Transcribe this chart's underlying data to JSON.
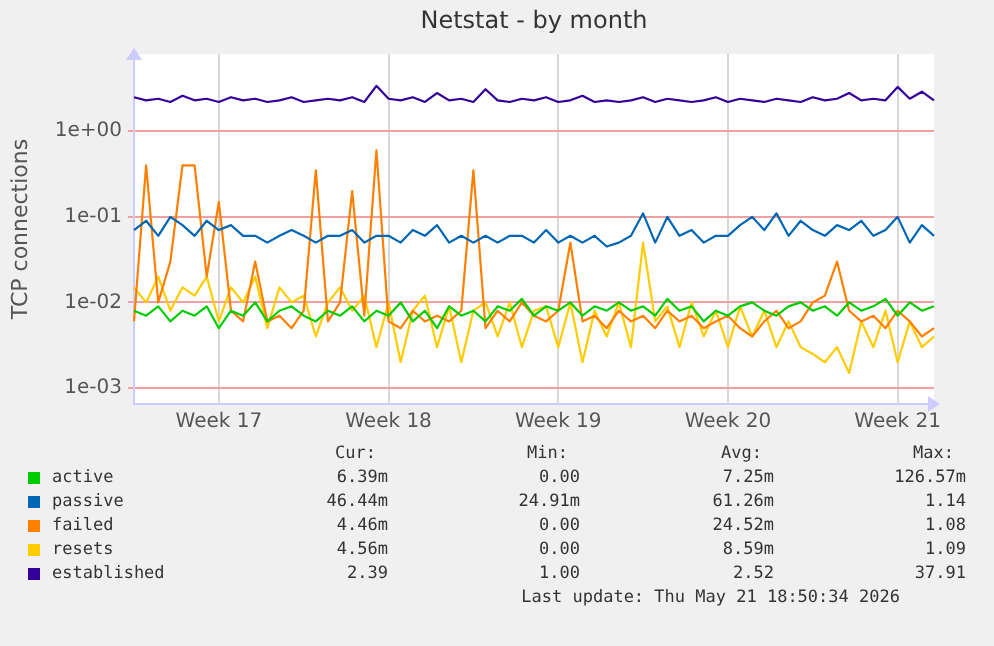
{
  "chart_data": {
    "type": "line",
    "title": "Netstat - by month",
    "ylabel": "TCP connections",
    "log": "y",
    "grid": true,
    "legend": "bottom",
    "marker": "none",
    "line_style": "solid",
    "categories": [
      null,
      null,
      null,
      null,
      null,
      null,
      null,
      "Week 17",
      null,
      null,
      null,
      null,
      null,
      null,
      null,
      null,
      null,
      null,
      null,
      null,
      null,
      "Week 18",
      null,
      null,
      null,
      null,
      null,
      null,
      null,
      null,
      null,
      null,
      null,
      null,
      null,
      "Week 19",
      null,
      null,
      null,
      null,
      null,
      null,
      null,
      null,
      null,
      null,
      null,
      null,
      null,
      "Week 20",
      null,
      null,
      null,
      null,
      null,
      null,
      null,
      null,
      null,
      null,
      null,
      null,
      null,
      "Week 21",
      null,
      null,
      null
    ],
    "ylim": [
      0.00065,
      8
    ],
    "yticks": [
      {
        "value": 0.001,
        "label": "1e-03"
      },
      {
        "value": 0.01,
        "label": "1e-02"
      },
      {
        "value": 0.1,
        "label": "1e-01"
      },
      {
        "value": 1,
        "label": "1e+00"
      }
    ],
    "series": [
      {
        "name": "active",
        "color": "#00cc00",
        "values": [
          0.008,
          0.007,
          0.009,
          0.006,
          0.008,
          0.007,
          0.009,
          0.005,
          0.008,
          0.007,
          0.01,
          0.006,
          0.008,
          0.009,
          0.007,
          0.006,
          0.008,
          0.007,
          0.009,
          0.006,
          0.008,
          0.007,
          0.01,
          0.006,
          0.008,
          0.005,
          0.009,
          0.007,
          0.008,
          0.006,
          0.009,
          0.008,
          0.011,
          0.007,
          0.009,
          0.008,
          0.01,
          0.007,
          0.009,
          0.008,
          0.01,
          0.008,
          0.009,
          0.007,
          0.011,
          0.008,
          0.009,
          0.006,
          0.008,
          0.007,
          0.009,
          0.01,
          0.008,
          0.007,
          0.009,
          0.01,
          0.008,
          0.009,
          0.007,
          0.01,
          0.008,
          0.009,
          0.011,
          0.007,
          0.01,
          0.008,
          0.009
        ]
      },
      {
        "name": "passive",
        "color": "#0066b3",
        "values": [
          0.07,
          0.09,
          0.06,
          0.1,
          0.08,
          0.06,
          0.09,
          0.07,
          0.08,
          0.06,
          0.06,
          0.05,
          0.06,
          0.07,
          0.06,
          0.05,
          0.06,
          0.06,
          0.07,
          0.05,
          0.06,
          0.06,
          0.05,
          0.07,
          0.06,
          0.08,
          0.05,
          0.06,
          0.05,
          0.06,
          0.05,
          0.06,
          0.06,
          0.05,
          0.07,
          0.05,
          0.06,
          0.05,
          0.06,
          0.045,
          0.05,
          0.06,
          0.11,
          0.05,
          0.1,
          0.06,
          0.07,
          0.05,
          0.06,
          0.06,
          0.08,
          0.1,
          0.07,
          0.11,
          0.06,
          0.09,
          0.07,
          0.06,
          0.08,
          0.07,
          0.09,
          0.06,
          0.07,
          0.1,
          0.05,
          0.08,
          0.06
        ]
      },
      {
        "name": "failed",
        "color": "#ff8000",
        "values": [
          0.006,
          0.4,
          0.01,
          0.03,
          0.4,
          0.4,
          0.02,
          0.15,
          0.008,
          0.006,
          0.03,
          0.006,
          0.007,
          0.005,
          0.008,
          0.35,
          0.006,
          0.01,
          0.2,
          0.007,
          0.6,
          0.006,
          0.005,
          0.008,
          0.006,
          0.007,
          0.006,
          0.008,
          0.35,
          0.005,
          0.008,
          0.006,
          0.01,
          0.007,
          0.006,
          0.008,
          0.05,
          0.006,
          0.007,
          0.005,
          0.008,
          0.006,
          0.007,
          0.005,
          0.008,
          0.006,
          0.007,
          0.005,
          0.006,
          0.007,
          0.005,
          0.004,
          0.006,
          0.008,
          0.005,
          0.006,
          0.01,
          0.012,
          0.03,
          0.008,
          0.006,
          0.007,
          0.005,
          0.008,
          0.006,
          0.004,
          0.005
        ]
      },
      {
        "name": "resets",
        "color": "#ffcc00",
        "values": [
          0.015,
          0.01,
          0.02,
          0.008,
          0.015,
          0.012,
          0.02,
          0.006,
          0.015,
          0.01,
          0.02,
          0.005,
          0.015,
          0.01,
          0.012,
          0.004,
          0.01,
          0.015,
          0.008,
          0.012,
          0.003,
          0.01,
          0.002,
          0.008,
          0.012,
          0.003,
          0.009,
          0.002,
          0.008,
          0.01,
          0.004,
          0.01,
          0.003,
          0.008,
          0.009,
          0.003,
          0.01,
          0.002,
          0.008,
          0.004,
          0.01,
          0.003,
          0.05,
          0.006,
          0.009,
          0.003,
          0.01,
          0.004,
          0.008,
          0.003,
          0.009,
          0.004,
          0.008,
          0.003,
          0.006,
          0.003,
          0.0025,
          0.002,
          0.003,
          0.0015,
          0.006,
          0.003,
          0.008,
          0.002,
          0.006,
          0.003,
          0.004
        ]
      },
      {
        "name": "established",
        "color": "#330099",
        "values": [
          2.5,
          2.3,
          2.4,
          2.2,
          2.6,
          2.3,
          2.4,
          2.2,
          2.5,
          2.3,
          2.4,
          2.2,
          2.3,
          2.5,
          2.2,
          2.3,
          2.4,
          2.3,
          2.5,
          2.2,
          3.4,
          2.4,
          2.3,
          2.5,
          2.2,
          2.8,
          2.3,
          2.4,
          2.2,
          3.1,
          2.3,
          2.2,
          2.4,
          2.3,
          2.5,
          2.2,
          2.3,
          2.6,
          2.2,
          2.3,
          2.2,
          2.3,
          2.5,
          2.2,
          2.4,
          2.3,
          2.2,
          2.3,
          2.5,
          2.2,
          2.4,
          2.3,
          2.2,
          2.4,
          2.3,
          2.2,
          2.5,
          2.3,
          2.4,
          2.8,
          2.3,
          2.4,
          2.3,
          3.3,
          2.4,
          2.9,
          2.3
        ]
      }
    ],
    "annotations": [
      "Cur:",
      "Min:",
      "Avg:",
      "Max:",
      "6.39m",
      "0.00",
      "7.25m",
      "126.57m",
      "46.44m",
      "24.91m",
      "61.26m",
      "1.14",
      "4.46m",
      "0.00",
      "24.52m",
      "1.08",
      "4.56m",
      "0.00",
      "8.59m",
      "1.09",
      "2.39",
      "1.00",
      "2.52",
      "37.91",
      "Last update: Thu May 21 18:50:34 2026"
    ]
  }
}
